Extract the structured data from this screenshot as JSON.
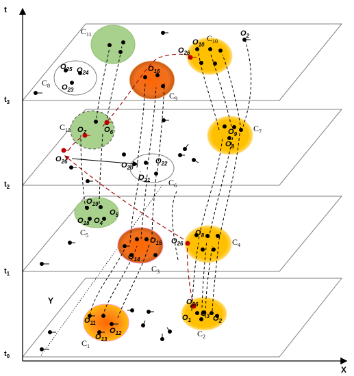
{
  "axes": {
    "vertical": "t",
    "horizontal": "X",
    "depth": "Y"
  },
  "time_labels": [
    "t",
    "t",
    "t",
    "t",
    "t"
  ],
  "time_subscripts": [
    "0",
    "1",
    "2",
    "3",
    ""
  ],
  "clusters": {
    "c1": "C",
    "c1_sub": "1",
    "c2": "C",
    "c2_sub": "2",
    "c3": "C",
    "c3_sub": "3",
    "c4": "C",
    "c4_sub": "4",
    "c5": "C",
    "c5_sub": "5",
    "c6": "C",
    "c6_sub": "6",
    "c7": "C",
    "c7_sub": "7",
    "c8": "C",
    "c8_sub": "8",
    "c9": "C",
    "c9_sub": "9",
    "c10": "C",
    "c10_sub": "10",
    "c11": "C",
    "c11_sub": "11",
    "c12": "C",
    "c12_sub": "12"
  },
  "objects": {
    "o": "O",
    "s1": "1",
    "s2": "2",
    "s3": "3",
    "s4": "4",
    "s5": "5",
    "s6": "6",
    "s7": "7",
    "s8": "8",
    "s9": "9",
    "s10": "10",
    "s11": "11",
    "s12": "12",
    "s13": "13",
    "s14": "14",
    "s15": "15",
    "s16": "16",
    "s18": "18",
    "s19": "19",
    "s20": "20",
    "s21": "21",
    "s22": "22",
    "s23": "23",
    "s24": "24",
    "s25": "25",
    "s26": "26"
  },
  "colors": {
    "green": "#a9d18e",
    "orange_fill": "#ff6600",
    "orange_edge": "#c55a11",
    "yellow_fill": "#ffc000",
    "yellow_edge": "#ffe080",
    "red_path": "#a01010",
    "plane_stroke": "#7f7f7f"
  }
}
